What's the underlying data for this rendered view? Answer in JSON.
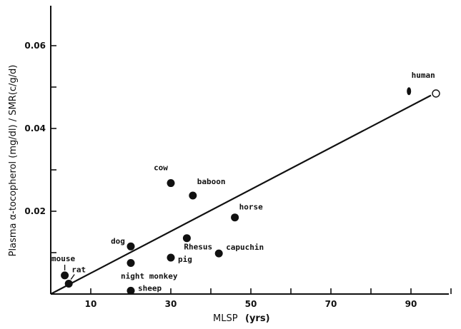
{
  "chart_data": {
    "type": "scatter",
    "xlabel": "MLSP",
    "xlabel_unit": "(yrs)",
    "ylabel": "Plasma α-tocopherol (mg/dl) / SMR(c/g/d)",
    "xlim": [
      0,
      100
    ],
    "ylim": [
      0,
      0.07
    ],
    "x_tick_labels": [
      "10",
      "30",
      "50",
      "70",
      "90"
    ],
    "y_tick_labels": [
      "0.02",
      "0.04",
      "0.06"
    ],
    "points": [
      {
        "label": "mouse",
        "x": 3.5,
        "y": 0.0045
      },
      {
        "label": "rat",
        "x": 4.5,
        "y": 0.0025
      },
      {
        "label": "dog",
        "x": 20,
        "y": 0.0115
      },
      {
        "label": "night monkey",
        "x": 20,
        "y": 0.0075
      },
      {
        "label": "sheep",
        "x": 20,
        "y": 0.0008
      },
      {
        "label": "cow",
        "x": 30,
        "y": 0.0268
      },
      {
        "label": "pig",
        "x": 30,
        "y": 0.0088
      },
      {
        "label": "Rhesus",
        "x": 34,
        "y": 0.0135
      },
      {
        "label": "baboon",
        "x": 35.5,
        "y": 0.0238
      },
      {
        "label": "capuchin",
        "x": 42,
        "y": 0.0098
      },
      {
        "label": "horse",
        "x": 46,
        "y": 0.0185
      },
      {
        "label": "human",
        "x": 89.5,
        "y": 0.049
      }
    ],
    "trend_line": {
      "x": [
        0,
        95
      ],
      "y": [
        0,
        0.048
      ]
    },
    "grid": false
  }
}
